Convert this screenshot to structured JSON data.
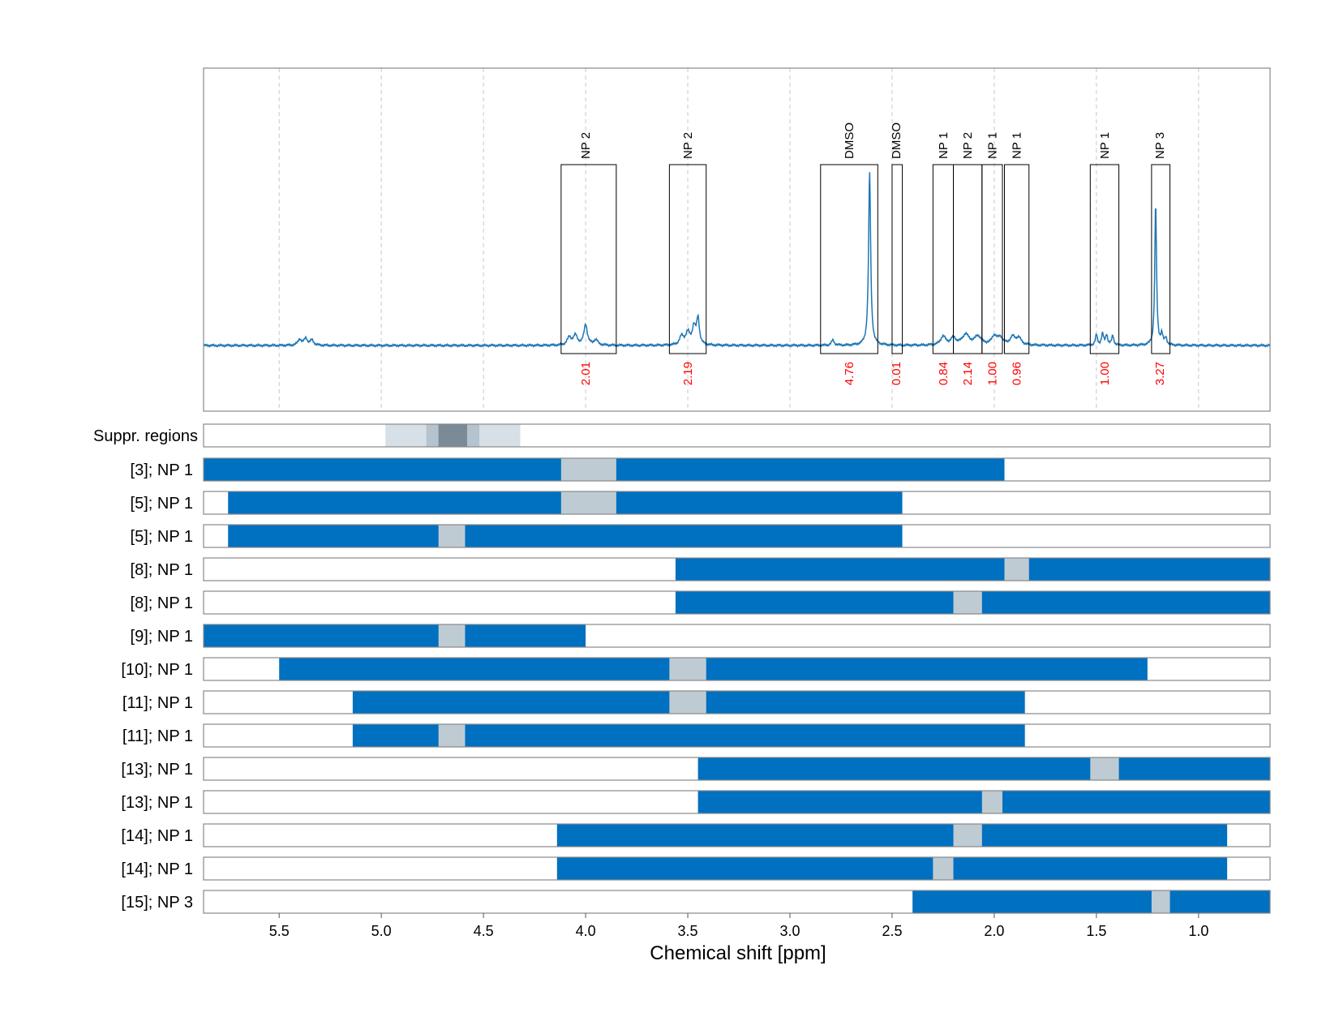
{
  "chart_data": {
    "type": "nmr-spectrum-with-interval-bars",
    "xlabel": "Chemical shift [ppm]",
    "xlim": [
      5.87,
      0.65
    ],
    "x_ticks": [
      5.5,
      5.0,
      4.5,
      4.0,
      3.5,
      3.0,
      2.5,
      2.0,
      1.5,
      1.0
    ],
    "x_tick_labels": [
      "5.5",
      "5.0",
      "4.5",
      "4.0",
      "3.5",
      "3.0",
      "2.5",
      "2.0",
      "1.5",
      "1.0"
    ],
    "colors": {
      "spectrum": "#1f77b4",
      "bar": "#0070c0",
      "excluded": "#bfcbd3",
      "integral_text": "#ff0000",
      "suppr_light": "#d8e0e7",
      "suppr_mid": "#b4c3cd",
      "suppr_dark": "#7a8a96"
    },
    "spectrum": {
      "baseline": 0,
      "peaks": [
        {
          "center": 5.4,
          "height": 0.035,
          "width": 0.01
        },
        {
          "center": 5.37,
          "height": 0.04,
          "width": 0.01
        },
        {
          "center": 5.34,
          "height": 0.03,
          "width": 0.01
        },
        {
          "center": 4.08,
          "height": 0.045,
          "width": 0.012
        },
        {
          "center": 4.05,
          "height": 0.055,
          "width": 0.012
        },
        {
          "center": 4.0,
          "height": 0.12,
          "width": 0.01
        },
        {
          "center": 3.95,
          "height": 0.03,
          "width": 0.012
        },
        {
          "center": 3.53,
          "height": 0.05,
          "width": 0.012
        },
        {
          "center": 3.5,
          "height": 0.07,
          "width": 0.012
        },
        {
          "center": 3.47,
          "height": 0.1,
          "width": 0.01
        },
        {
          "center": 3.45,
          "height": 0.15,
          "width": 0.008
        },
        {
          "center": 2.79,
          "height": 0.03,
          "width": 0.008
        },
        {
          "center": 2.61,
          "height": 1.0,
          "width": 0.006
        },
        {
          "center": 2.25,
          "height": 0.05,
          "width": 0.015
        },
        {
          "center": 2.2,
          "height": 0.04,
          "width": 0.015
        },
        {
          "center": 2.14,
          "height": 0.06,
          "width": 0.02
        },
        {
          "center": 2.08,
          "height": 0.05,
          "width": 0.02
        },
        {
          "center": 2.0,
          "height": 0.05,
          "width": 0.015
        },
        {
          "center": 1.97,
          "height": 0.04,
          "width": 0.015
        },
        {
          "center": 1.91,
          "height": 0.045,
          "width": 0.015
        },
        {
          "center": 1.88,
          "height": 0.04,
          "width": 0.015
        },
        {
          "center": 1.5,
          "height": 0.06,
          "width": 0.006
        },
        {
          "center": 1.47,
          "height": 0.065,
          "width": 0.006
        },
        {
          "center": 1.45,
          "height": 0.06,
          "width": 0.006
        },
        {
          "center": 1.42,
          "height": 0.055,
          "width": 0.006
        },
        {
          "center": 1.21,
          "height": 0.82,
          "width": 0.005
        },
        {
          "center": 1.18,
          "height": 0.06,
          "width": 0.006
        },
        {
          "center": 1.16,
          "height": 0.04,
          "width": 0.006
        }
      ]
    },
    "peak_regions": [
      {
        "start": 4.12,
        "end": 3.85,
        "label": "NP 2",
        "integral": "2.01",
        "label_pos": 4.0
      },
      {
        "start": 3.59,
        "end": 3.41,
        "label": "NP 2",
        "integral": "2.19",
        "label_pos": 3.5
      },
      {
        "start": 2.85,
        "end": 2.57,
        "label": "DMSO",
        "integral": "4.76",
        "label_pos": 2.71
      },
      {
        "start": 2.5,
        "end": 2.45,
        "label": "DMSO",
        "integral": "0.01",
        "label_pos": 2.48
      },
      {
        "start": 2.3,
        "end": 2.2,
        "label": "NP 1",
        "integral": "0.84",
        "label_pos": 2.25
      },
      {
        "start": 2.2,
        "end": 2.06,
        "label": "NP 2",
        "integral": "2.14",
        "label_pos": 2.13
      },
      {
        "start": 2.06,
        "end": 1.96,
        "label": "NP 1",
        "integral": "1.00",
        "label_pos": 2.01
      },
      {
        "start": 1.95,
        "end": 1.83,
        "label": "NP 1",
        "integral": "0.96",
        "label_pos": 1.89
      },
      {
        "start": 1.53,
        "end": 1.39,
        "label": "NP 1",
        "integral": "1.00",
        "label_pos": 1.46
      },
      {
        "start": 1.23,
        "end": 1.14,
        "label": "NP 3",
        "integral": "3.27",
        "label_pos": 1.19
      }
    ],
    "suppressed_regions": {
      "label": "Suppr. regions",
      "bands": [
        {
          "start": 4.98,
          "end": 4.32,
          "level": "light"
        },
        {
          "start": 4.78,
          "end": 4.52,
          "level": "mid"
        },
        {
          "start": 4.72,
          "end": 4.58,
          "level": "dark"
        }
      ]
    },
    "interval_rows": [
      {
        "label": "[3]; NP 1",
        "start": 5.87,
        "end": 1.95,
        "gap": [
          4.12,
          3.85
        ]
      },
      {
        "label": "[5]; NP 1",
        "start": 5.75,
        "end": 2.45,
        "gap": [
          4.12,
          3.85
        ]
      },
      {
        "label": "[5]; NP 1",
        "start": 5.75,
        "end": 2.45,
        "gap": [
          4.72,
          4.59
        ]
      },
      {
        "label": "[8]; NP 1",
        "start": 3.56,
        "end": 0.65,
        "gap": [
          1.95,
          1.83
        ]
      },
      {
        "label": "[8]; NP 1",
        "start": 3.56,
        "end": 0.65,
        "gap": [
          2.2,
          2.06
        ]
      },
      {
        "label": "[9]; NP 1",
        "start": 5.87,
        "end": 4.0,
        "gap": [
          4.72,
          4.59
        ]
      },
      {
        "label": "[10]; NP 1",
        "start": 5.5,
        "end": 1.25,
        "gap": [
          3.59,
          3.41
        ]
      },
      {
        "label": "[11]; NP 1",
        "start": 5.14,
        "end": 1.85,
        "gap": [
          3.59,
          3.41
        ]
      },
      {
        "label": "[11]; NP 1",
        "start": 5.14,
        "end": 1.85,
        "gap": [
          4.72,
          4.59
        ]
      },
      {
        "label": "[13]; NP 1",
        "start": 3.45,
        "end": 0.65,
        "gap": [
          1.53,
          1.39
        ]
      },
      {
        "label": "[13]; NP 1",
        "start": 3.45,
        "end": 0.65,
        "gap": [
          2.06,
          1.96
        ]
      },
      {
        "label": "[14]; NP 1",
        "start": 4.14,
        "end": 0.86,
        "gap": [
          2.2,
          2.06
        ]
      },
      {
        "label": "[14]; NP 1",
        "start": 4.14,
        "end": 0.86,
        "gap": [
          2.3,
          2.2
        ]
      },
      {
        "label": "[15]; NP 3",
        "start": 2.4,
        "end": 0.65,
        "gap": [
          1.23,
          1.14
        ]
      }
    ]
  }
}
